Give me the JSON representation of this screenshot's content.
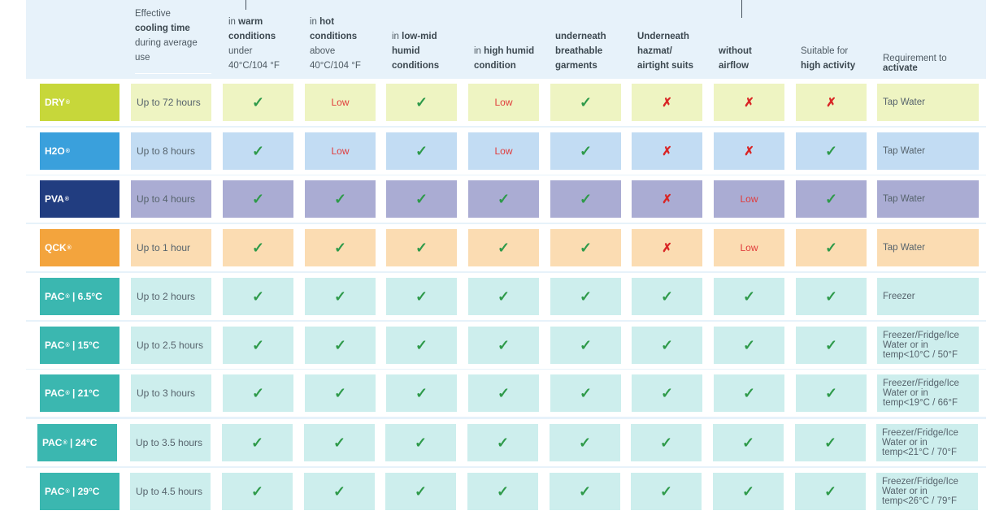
{
  "headers": {
    "cooling_time": {
      "pre": "Effective",
      "bold": "cooling time",
      "post1": "during average",
      "post2": "use"
    },
    "warm": {
      "l1_pre": "in ",
      "l1_bold": "warm",
      "l2_bold": "conditions",
      "l3": "under",
      "l4": "40°C/104 °F"
    },
    "hot": {
      "l1_pre": "in ",
      "l1_bold": "hot",
      "l2_bold": "conditions",
      "l3": "above",
      "l4": "40°C/104 °F"
    },
    "low_mid": {
      "l1_pre": "in ",
      "l1_bold": "low-mid",
      "l2_bold": "humid",
      "l3_bold": "conditions"
    },
    "high_humid": {
      "l1_pre": "in ",
      "l1_bold": "high humid",
      "l2_bold": "condition"
    },
    "garments": {
      "l1_bold": "underneath",
      "l2_bold": "breathable",
      "l3_bold": "garments"
    },
    "hazmat": {
      "l1_bold": "Underneath",
      "l2_bold": "hazmat/",
      "l3_bold": "airtight suits"
    },
    "airflow": {
      "l1_bold": "without",
      "l2_bold": "airflow"
    },
    "activity": {
      "l1": "Suitable for",
      "l2_bold": "high activity"
    },
    "requirement": {
      "l1": "Requirement to",
      "l2_bold": "activate"
    }
  },
  "rows": [
    {
      "name": "DRY",
      "sup": "®",
      "time": "Up to 72 hours",
      "marks": [
        "check",
        "low",
        "check",
        "low",
        "check",
        "cross",
        "cross",
        "cross"
      ],
      "req": [
        "Tap Water"
      ]
    },
    {
      "name": "H2O",
      "sup": "®",
      "time": "Up to 8 hours",
      "marks": [
        "check",
        "low",
        "check",
        "low",
        "check",
        "cross",
        "cross",
        "check"
      ],
      "req": [
        "Tap Water"
      ]
    },
    {
      "name": "PVA",
      "sup": "®",
      "time": "Up to 4 hours",
      "marks": [
        "check",
        "check",
        "check",
        "check",
        "check",
        "cross",
        "low",
        "check"
      ],
      "req": [
        "Tap Water"
      ]
    },
    {
      "name": "QCK",
      "sup": "®",
      "time": "Up to 1 hour",
      "marks": [
        "check",
        "check",
        "check",
        "check",
        "check",
        "cross",
        "low",
        "check"
      ],
      "req": [
        "Tap Water"
      ]
    },
    {
      "name": "PAC",
      "sup": "®",
      "suffix": " | 6.5°C",
      "time": "Up to 2 hours",
      "marks": [
        "check",
        "check",
        "check",
        "check",
        "check",
        "check",
        "check",
        "check"
      ],
      "req": [
        "Freezer"
      ]
    },
    {
      "name": "PAC",
      "sup": "®",
      "suffix": " | 15°C",
      "time": "Up to 2.5 hours",
      "marks": [
        "check",
        "check",
        "check",
        "check",
        "check",
        "check",
        "check",
        "check"
      ],
      "req": [
        "Freezer/Fridge/Ice",
        "Water or in",
        "temp<10°C / 50°F"
      ]
    },
    {
      "name": "PAC",
      "sup": "®",
      "suffix": " | 21°C",
      "time": "Up to 3 hours",
      "marks": [
        "check",
        "check",
        "check",
        "check",
        "check",
        "check",
        "check",
        "check"
      ],
      "req": [
        "Freezer/Fridge/Ice",
        "Water or in",
        "temp<19°C / 66°F"
      ]
    },
    {
      "name": "PAC",
      "sup": "®",
      "suffix": " | 24°C",
      "time": "Up to 3.5 hours",
      "marks": [
        "check",
        "check",
        "check",
        "check",
        "check",
        "check",
        "check",
        "check"
      ],
      "req": [
        "Freezer/Fridge/Ice",
        "Water or in",
        "temp<21°C / 70°F"
      ]
    },
    {
      "name": "PAC",
      "sup": "®",
      "suffix": " | 29°C",
      "time": "Up to 4.5 hours",
      "marks": [
        "check",
        "check",
        "check",
        "check",
        "check",
        "check",
        "check",
        "check"
      ],
      "req": [
        "Freezer/Fridge/Ice",
        "Water or in",
        "temp<26°C / 79°F"
      ]
    }
  ],
  "mark_text": {
    "low": "Low",
    "check": "✓",
    "cross": "✗"
  },
  "colors": {
    "row_name": [
      "#c7d73a",
      "#3aa0dc",
      "#213d80",
      "#f3a43d",
      "#3bb7b0",
      "#3bb7b0",
      "#3bb7b0",
      "#3bb7b0",
      "#3bb7b0"
    ],
    "row_cell": [
      "#eef4c2",
      "#c2dcf3",
      "#aaacd3",
      "#fbdcb2",
      "#cdeeed",
      "#cdeeed",
      "#cdeeed",
      "#cdeeed",
      "#cdeeed"
    ],
    "check": "#2e9a4a",
    "cross": "#d92626",
    "low": "#e03c3c"
  }
}
